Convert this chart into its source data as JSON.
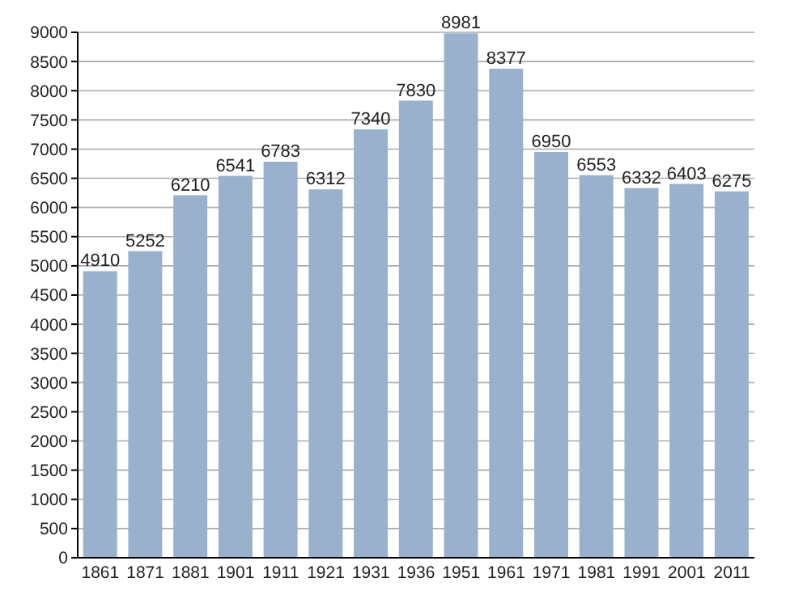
{
  "chart_data": {
    "type": "bar",
    "categories": [
      "1861",
      "1871",
      "1881",
      "1901",
      "1911",
      "1921",
      "1931",
      "1936",
      "1951",
      "1961",
      "1971",
      "1981",
      "1991",
      "2001",
      "2011"
    ],
    "values": [
      4910,
      5252,
      6210,
      6541,
      6783,
      6312,
      7340,
      7830,
      8981,
      8377,
      6950,
      6553,
      6332,
      6403,
      6275
    ],
    "color": "#99b1cd",
    "ylim": [
      0,
      9000
    ],
    "yticks": [
      0,
      500,
      1000,
      1500,
      2000,
      2500,
      3000,
      3500,
      4000,
      4500,
      5000,
      5500,
      6000,
      6500,
      7000,
      7500,
      8000,
      8500,
      9000
    ],
    "grid": "y",
    "data_labels": true
  }
}
